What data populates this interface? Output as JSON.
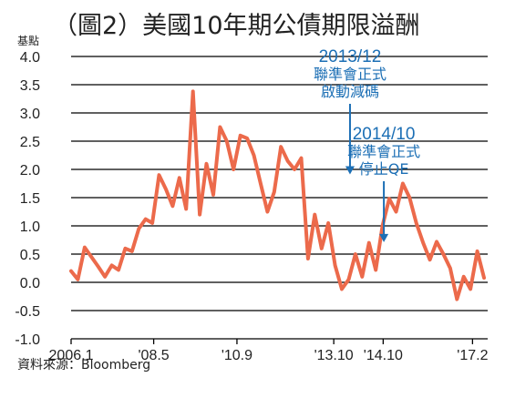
{
  "title": "（圖2）美國10年期公債期限溢酬",
  "unit": "基點",
  "source": "資料來源：Bloomberg",
  "colors": {
    "line": "#ec6a4b",
    "annotation": "#1c6fb5",
    "grid": "#000000"
  },
  "annotations": [
    {
      "date": "2013/12",
      "line1": "聯準會正式",
      "line2": "啟動減碼",
      "x_idx": 41.2,
      "y": 1.75
    },
    {
      "date": "2014/10",
      "line1": "聯準會正式",
      "line2": "停止QE",
      "x_idx": 46.2,
      "y": 0.55
    }
  ],
  "chart_data": {
    "type": "line",
    "title": "（圖2）美國10年期公債期限溢酬",
    "ylabel": "基點",
    "xlabel": "",
    "ylim": [
      -1.0,
      4.0
    ],
    "yticks": [
      "4.0",
      "3.5",
      "3.0",
      "2.5",
      "2.0",
      "1.5",
      "1.0",
      "0.5",
      "0.0",
      "-0.5",
      "-1.0"
    ],
    "xticks": [
      {
        "label": "2006.1",
        "idx": 0
      },
      {
        "label": "'08.5",
        "idx": 12.2
      },
      {
        "label": "'10.9",
        "idx": 24.5
      },
      {
        "label": "'13.10",
        "idx": 38.8
      },
      {
        "label": "'14.10",
        "idx": 46.1
      },
      {
        "label": "'17.2",
        "idx": 59.3
      }
    ],
    "grid": true,
    "x_count": 62,
    "series": [
      {
        "values": [
          0.2,
          0.05,
          0.62,
          0.45,
          0.28,
          0.1,
          0.3,
          0.22,
          0.6,
          0.55,
          0.95,
          1.12,
          1.05,
          1.9,
          1.65,
          1.35,
          1.85,
          1.3,
          3.38,
          1.2,
          2.1,
          1.55,
          2.75,
          2.5,
          2.0,
          2.6,
          2.55,
          2.25,
          1.75,
          1.25,
          1.6,
          2.4,
          2.15,
          2.0,
          2.2,
          0.42,
          1.2,
          0.6,
          1.05,
          0.3,
          -0.12,
          0.05,
          0.5,
          0.1,
          0.7,
          0.22,
          1.0,
          1.48,
          1.25,
          1.75,
          1.5,
          1.05,
          0.7,
          0.4,
          0.72,
          0.5,
          0.25,
          -0.3,
          0.1,
          -0.12,
          0.55,
          0.08
        ]
      }
    ]
  }
}
